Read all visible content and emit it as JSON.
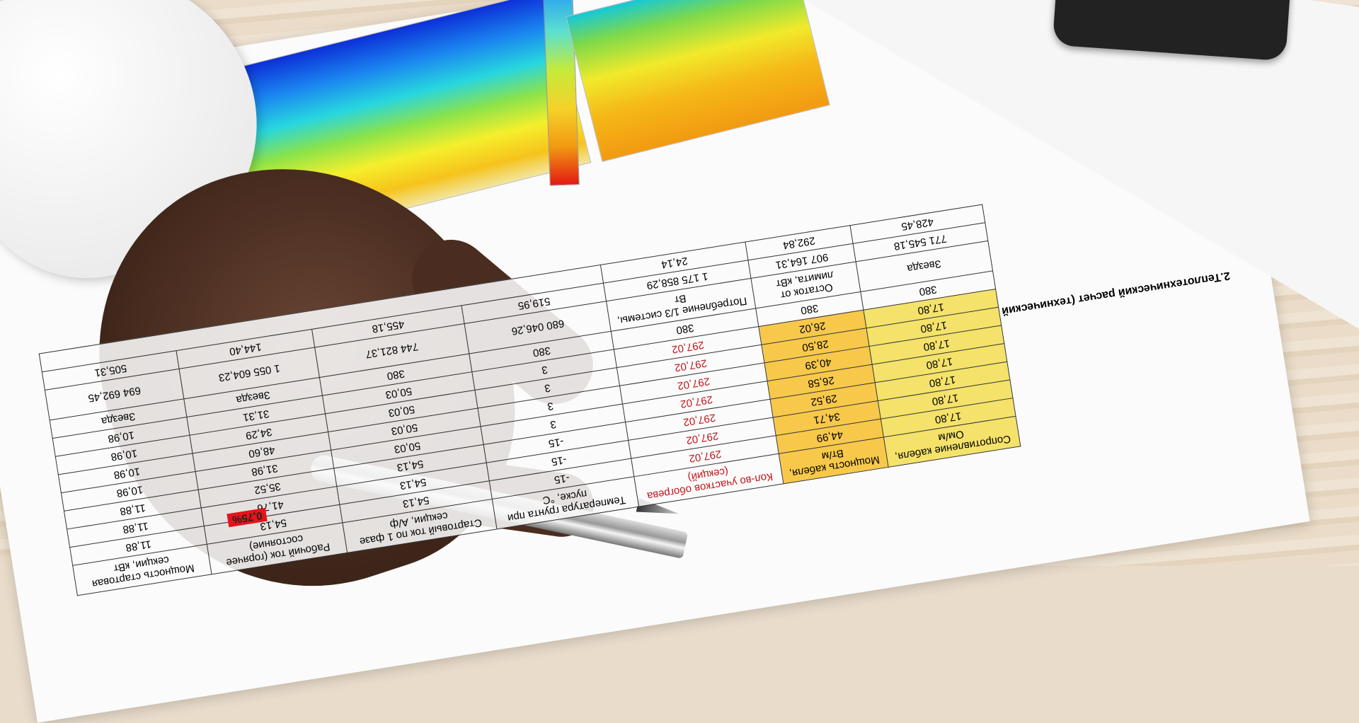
{
  "document": {
    "title": "2.Теплотехнический расчет (технический проект)",
    "percent_badge": "0,75%",
    "header_cells": [
      "Сопротивление кабеля, Ом/м",
      "Мощность кабеля, Вт/м",
      "Кол-во участков обогрева (секций)",
      "Температура грунта при пуске, °С",
      "Стартовый ток по 1 фазе секции, А/ф",
      "Рабочий ток (горячее состояние)",
      "Мощность стартовая секции, кВт"
    ],
    "rows": [
      [
        "17,80",
        "44,99",
        "297,02",
        "-15",
        "54,13",
        "54,13",
        "11,88"
      ],
      [
        "17,80",
        "34,71",
        "297,02",
        "-15",
        "54,13",
        "41,76",
        "11,88"
      ],
      [
        "17,80",
        "29,52",
        "297,02",
        "-15",
        "54,13",
        "35,52",
        "11,88"
      ],
      [
        "17,80",
        "26,58",
        "297,02",
        "3",
        "50,03",
        "31,98",
        "10,98"
      ],
      [
        "17,80",
        "40,39",
        "297,02",
        "3",
        "50,03",
        "48,60",
        "10,98"
      ],
      [
        "17,80",
        "28,50",
        "297,02",
        "3",
        "50,03",
        "34,29",
        "10,98"
      ],
      [
        "17,80",
        "26,02",
        "297,02",
        "3",
        "50,03",
        "31,31",
        "10,98"
      ]
    ],
    "voltage": [
      "380",
      "380",
      "380",
      "380",
      "380"
    ],
    "scheme": [
      "Звезда",
      "Звезда",
      "Звезда"
    ],
    "totals": [
      "680 046,26",
      "744 821,37",
      "1 055 604,23",
      "694 692,45",
      "771 545,18",
      "907 164,31",
      "1 175 858,29"
    ],
    "remainders": [
      "519,95",
      "455,18",
      "144,40",
      "505,31",
      "428,45",
      "292,84",
      "24,14"
    ],
    "footer_labels": [
      "Остаток от лимита, кВт",
      "Потребление 1/3 системы, Вт"
    ]
  }
}
